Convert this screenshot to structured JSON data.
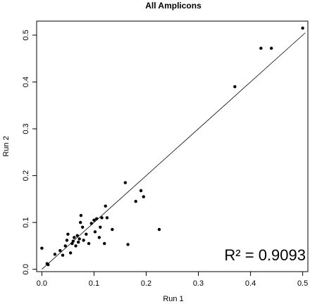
{
  "chart_data": {
    "type": "scatter",
    "title": "All Amplicons",
    "xlabel": "Run 1",
    "ylabel": "Run 2",
    "xlim": [
      -0.01,
      0.51
    ],
    "ylim": [
      -0.005,
      0.53
    ],
    "x_ticks": [
      0.0,
      0.1,
      0.2,
      0.3,
      0.4,
      0.5
    ],
    "x_tick_labels": [
      "0.0",
      "0.1",
      "0.2",
      "0.3",
      "0.4",
      "0.5"
    ],
    "y_ticks": [
      0.0,
      0.1,
      0.2,
      0.3,
      0.4,
      0.5
    ],
    "y_tick_labels": [
      "0.0",
      "0.1",
      "0.2",
      "0.3",
      "0.4",
      "0.5"
    ],
    "grid": false,
    "annotation": "R² = 0.9093",
    "fit_line": {
      "x": [
        0.0,
        0.505
      ],
      "y": [
        0.0,
        0.505
      ]
    },
    "series": [
      {
        "points": [
          [
            0.0,
            0.045
          ],
          [
            0.01,
            0.012
          ],
          [
            0.012,
            0.01
          ],
          [
            0.025,
            0.032
          ],
          [
            0.035,
            0.04
          ],
          [
            0.04,
            0.03
          ],
          [
            0.045,
            0.05
          ],
          [
            0.048,
            0.062
          ],
          [
            0.05,
            0.075
          ],
          [
            0.055,
            0.035
          ],
          [
            0.058,
            0.055
          ],
          [
            0.06,
            0.06
          ],
          [
            0.062,
            0.068
          ],
          [
            0.065,
            0.05
          ],
          [
            0.068,
            0.072
          ],
          [
            0.07,
            0.058
          ],
          [
            0.072,
            0.065
          ],
          [
            0.074,
            0.1
          ],
          [
            0.075,
            0.115
          ],
          [
            0.078,
            0.09
          ],
          [
            0.08,
            0.062
          ],
          [
            0.085,
            0.075
          ],
          [
            0.09,
            0.055
          ],
          [
            0.095,
            0.098
          ],
          [
            0.1,
            0.105
          ],
          [
            0.102,
            0.08
          ],
          [
            0.105,
            0.108
          ],
          [
            0.11,
            0.068
          ],
          [
            0.112,
            0.09
          ],
          [
            0.115,
            0.11
          ],
          [
            0.12,
            0.055
          ],
          [
            0.122,
            0.135
          ],
          [
            0.125,
            0.11
          ],
          [
            0.135,
            0.085
          ],
          [
            0.16,
            0.185
          ],
          [
            0.165,
            0.053
          ],
          [
            0.18,
            0.145
          ],
          [
            0.19,
            0.168
          ],
          [
            0.195,
            0.155
          ],
          [
            0.225,
            0.085
          ],
          [
            0.37,
            0.39
          ],
          [
            0.42,
            0.472
          ],
          [
            0.44,
            0.472
          ],
          [
            0.5,
            0.515
          ]
        ]
      }
    ]
  }
}
